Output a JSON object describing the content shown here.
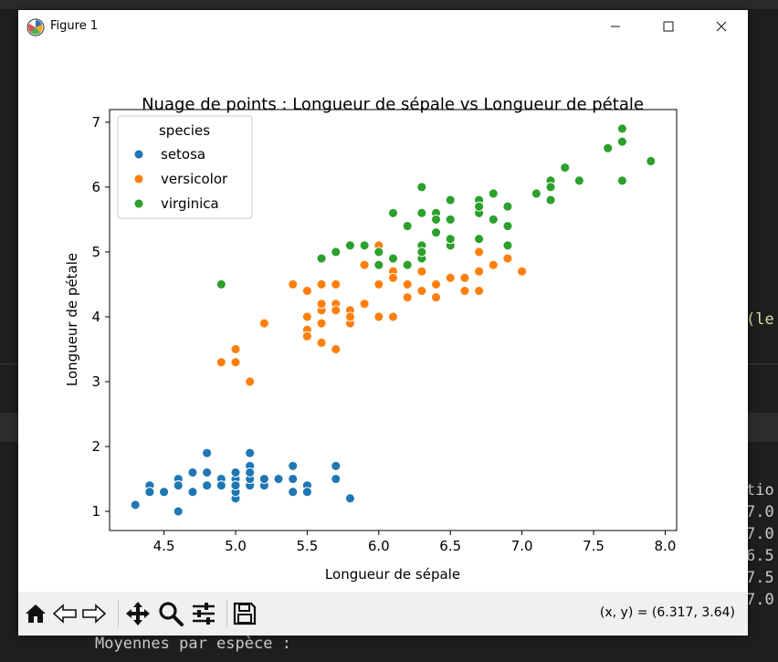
{
  "window": {
    "title": "Figure 1"
  },
  "background": {
    "bottom_text": "Moyennes par espèce :",
    "right_text_1": "(le",
    "right_text_2": "tio",
    "right_values": [
      "7.0",
      "7.0",
      "6.5",
      "7.5",
      "7.0"
    ]
  },
  "toolbar": {
    "coords": "(x, y) = (6.317, 3.64)",
    "icons": [
      "home-icon",
      "back-arrow-icon",
      "forward-arrow-icon",
      "pan-icon",
      "zoom-icon",
      "configure-subplots-icon",
      "save-icon"
    ]
  },
  "colors": {
    "setosa": "#1f77b4",
    "versicolor": "#ff7f0e",
    "virginica": "#2ca02c"
  },
  "chart_data": {
    "type": "scatter",
    "title": "Nuage de points : Longueur de sépale vs Longueur de pétale",
    "xlabel": "Longueur de sépale",
    "ylabel": "Longueur de pétale",
    "xlim": [
      4.12,
      8.08
    ],
    "ylim": [
      0.705,
      7.195
    ],
    "xticks": [
      "4.5",
      "5.0",
      "5.5",
      "6.0",
      "6.5",
      "7.0",
      "7.5",
      "8.0"
    ],
    "yticks": [
      "1",
      "2",
      "3",
      "4",
      "5",
      "6",
      "7"
    ],
    "grid": false,
    "legend": {
      "title": "species",
      "position": "top-left"
    },
    "series": [
      {
        "name": "setosa",
        "points": [
          [
            5.1,
            1.4
          ],
          [
            4.9,
            1.4
          ],
          [
            4.7,
            1.3
          ],
          [
            4.6,
            1.5
          ],
          [
            5.0,
            1.4
          ],
          [
            5.4,
            1.7
          ],
          [
            4.6,
            1.4
          ],
          [
            5.0,
            1.5
          ],
          [
            4.4,
            1.4
          ],
          [
            4.9,
            1.5
          ],
          [
            5.4,
            1.5
          ],
          [
            4.8,
            1.6
          ],
          [
            4.8,
            1.4
          ],
          [
            4.3,
            1.1
          ],
          [
            5.8,
            1.2
          ],
          [
            5.7,
            1.5
          ],
          [
            5.4,
            1.3
          ],
          [
            5.1,
            1.4
          ],
          [
            5.7,
            1.7
          ],
          [
            5.1,
            1.5
          ],
          [
            5.4,
            1.7
          ],
          [
            5.1,
            1.5
          ],
          [
            4.6,
            1.0
          ],
          [
            5.1,
            1.7
          ],
          [
            4.8,
            1.9
          ],
          [
            5.0,
            1.6
          ],
          [
            5.0,
            1.6
          ],
          [
            5.2,
            1.5
          ],
          [
            5.2,
            1.4
          ],
          [
            4.7,
            1.6
          ],
          [
            4.8,
            1.6
          ],
          [
            5.4,
            1.5
          ],
          [
            5.2,
            1.5
          ],
          [
            5.5,
            1.4
          ],
          [
            4.9,
            1.5
          ],
          [
            5.0,
            1.2
          ],
          [
            5.5,
            1.3
          ],
          [
            4.9,
            1.4
          ],
          [
            4.4,
            1.3
          ],
          [
            5.1,
            1.5
          ],
          [
            5.0,
            1.3
          ],
          [
            4.5,
            1.3
          ],
          [
            4.4,
            1.3
          ],
          [
            5.0,
            1.6
          ],
          [
            5.1,
            1.9
          ],
          [
            4.8,
            1.4
          ],
          [
            5.1,
            1.6
          ],
          [
            4.6,
            1.4
          ],
          [
            5.3,
            1.5
          ],
          [
            5.0,
            1.4
          ]
        ]
      },
      {
        "name": "versicolor",
        "points": [
          [
            7.0,
            4.7
          ],
          [
            6.4,
            4.5
          ],
          [
            6.9,
            4.9
          ],
          [
            5.5,
            4.0
          ],
          [
            6.5,
            4.6
          ],
          [
            5.7,
            4.5
          ],
          [
            6.3,
            4.7
          ],
          [
            4.9,
            3.3
          ],
          [
            6.6,
            4.6
          ],
          [
            5.2,
            3.9
          ],
          [
            5.0,
            3.5
          ],
          [
            5.9,
            4.2
          ],
          [
            6.0,
            4.0
          ],
          [
            6.1,
            4.7
          ],
          [
            5.6,
            3.6
          ],
          [
            6.7,
            4.4
          ],
          [
            5.6,
            4.5
          ],
          [
            5.8,
            4.1
          ],
          [
            6.2,
            4.5
          ],
          [
            5.6,
            3.9
          ],
          [
            5.9,
            4.8
          ],
          [
            6.1,
            4.0
          ],
          [
            6.3,
            4.9
          ],
          [
            6.1,
            4.7
          ],
          [
            6.4,
            4.3
          ],
          [
            6.6,
            4.4
          ],
          [
            6.8,
            4.8
          ],
          [
            6.7,
            5.0
          ],
          [
            6.0,
            4.5
          ],
          [
            5.7,
            3.5
          ],
          [
            5.5,
            3.8
          ],
          [
            5.5,
            3.7
          ],
          [
            5.8,
            3.9
          ],
          [
            6.0,
            5.1
          ],
          [
            5.4,
            4.5
          ],
          [
            6.0,
            4.5
          ],
          [
            6.7,
            4.7
          ],
          [
            6.3,
            4.4
          ],
          [
            5.6,
            4.1
          ],
          [
            5.5,
            4.0
          ],
          [
            5.5,
            4.4
          ],
          [
            6.1,
            4.6
          ],
          [
            5.8,
            4.0
          ],
          [
            5.0,
            3.3
          ],
          [
            5.6,
            4.2
          ],
          [
            5.7,
            4.2
          ],
          [
            5.7,
            4.2
          ],
          [
            6.2,
            4.3
          ],
          [
            5.1,
            3.0
          ],
          [
            5.7,
            4.1
          ]
        ]
      },
      {
        "name": "virginica",
        "points": [
          [
            6.3,
            6.0
          ],
          [
            5.8,
            5.1
          ],
          [
            7.1,
            5.9
          ],
          [
            6.3,
            5.6
          ],
          [
            6.5,
            5.8
          ],
          [
            7.6,
            6.6
          ],
          [
            4.9,
            4.5
          ],
          [
            7.3,
            6.3
          ],
          [
            6.7,
            5.8
          ],
          [
            7.2,
            6.1
          ],
          [
            6.5,
            5.1
          ],
          [
            6.4,
            5.3
          ],
          [
            6.8,
            5.5
          ],
          [
            5.7,
            5.0
          ],
          [
            5.8,
            5.1
          ],
          [
            6.4,
            5.3
          ],
          [
            6.5,
            5.5
          ],
          [
            7.7,
            6.7
          ],
          [
            7.7,
            6.9
          ],
          [
            6.0,
            5.0
          ],
          [
            6.9,
            5.7
          ],
          [
            5.6,
            4.9
          ],
          [
            7.7,
            6.7
          ],
          [
            6.3,
            4.9
          ],
          [
            6.7,
            5.7
          ],
          [
            7.2,
            6.0
          ],
          [
            6.2,
            4.8
          ],
          [
            6.1,
            4.9
          ],
          [
            6.4,
            5.6
          ],
          [
            7.2,
            5.8
          ],
          [
            7.4,
            6.1
          ],
          [
            7.9,
            6.4
          ],
          [
            6.4,
            5.6
          ],
          [
            6.3,
            5.1
          ],
          [
            6.1,
            5.6
          ],
          [
            7.7,
            6.1
          ],
          [
            6.3,
            5.6
          ],
          [
            6.4,
            5.5
          ],
          [
            6.0,
            4.8
          ],
          [
            6.9,
            5.4
          ],
          [
            6.7,
            5.6
          ],
          [
            6.9,
            5.1
          ],
          [
            5.8,
            5.1
          ],
          [
            6.8,
            5.9
          ],
          [
            6.7,
            5.7
          ],
          [
            6.7,
            5.2
          ],
          [
            6.3,
            5.0
          ],
          [
            6.5,
            5.2
          ],
          [
            6.2,
            5.4
          ],
          [
            5.9,
            5.1
          ]
        ]
      }
    ]
  }
}
